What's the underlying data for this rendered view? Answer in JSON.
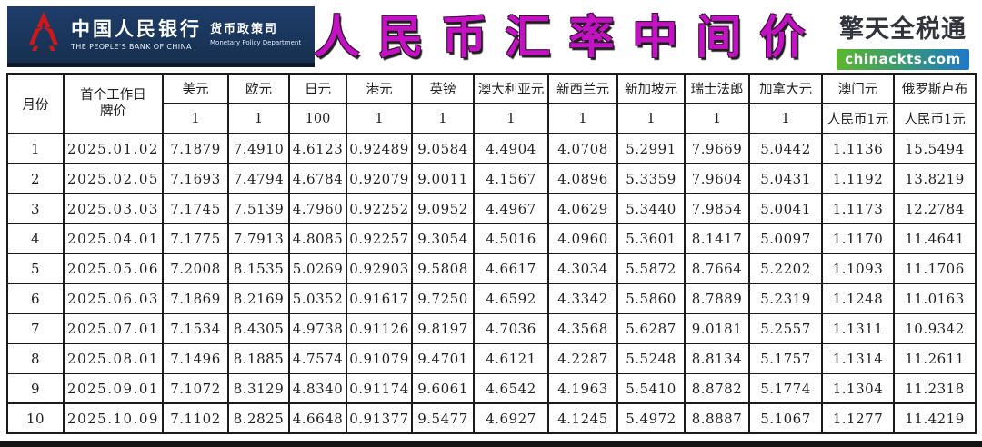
{
  "banner": {
    "bank_name_cn": "中国人民银行",
    "bank_name_en": "THE PEOPLE'S BANK OF CHINA",
    "dept_cn": "货币政策司",
    "dept_en": "Monetary Policy Department",
    "bg_color": "#16304f",
    "logo_color": "#d01818"
  },
  "title": {
    "text": "人民币汇率中间价",
    "color": "#c311c3"
  },
  "brand": {
    "name": "擎天全税通",
    "site": "chinackts.com",
    "bar_color_left": "#5eb531",
    "bar_color_right": "#1f78c8"
  },
  "table": {
    "month_label": "月份",
    "first_day_label_line1": "首个工作日",
    "first_day_label_line2": "牌价",
    "currencies": [
      {
        "id": "usd",
        "label": "美元",
        "unit": "1"
      },
      {
        "id": "eur",
        "label": "欧元",
        "unit": "1"
      },
      {
        "id": "jpy",
        "label": "日元",
        "unit": "100"
      },
      {
        "id": "hkd",
        "label": "港元",
        "unit": "1"
      },
      {
        "id": "gbp",
        "label": "英镑",
        "unit": "1"
      },
      {
        "id": "aud",
        "label": "澳大利亚元",
        "unit": "1"
      },
      {
        "id": "nzd",
        "label": "新西兰元",
        "unit": "1"
      },
      {
        "id": "sgd",
        "label": "新加坡元",
        "unit": "1"
      },
      {
        "id": "chf",
        "label": "瑞士法郎",
        "unit": "1"
      },
      {
        "id": "cad",
        "label": "加拿大元",
        "unit": "1"
      },
      {
        "id": "mop",
        "label": "澳门元",
        "unit": "人民币1元"
      },
      {
        "id": "rub",
        "label": "俄罗斯卢布",
        "unit": "人民币1元"
      }
    ],
    "rows": [
      {
        "month": "1",
        "date": "2025.01.02",
        "values": [
          "7.1879",
          "7.4910",
          "4.6123",
          "0.92489",
          "9.0584",
          "4.4904",
          "4.0708",
          "5.2991",
          "7.9669",
          "5.0442",
          "1.1136",
          "15.5494"
        ]
      },
      {
        "month": "2",
        "date": "2025.02.05",
        "values": [
          "7.1693",
          "7.4794",
          "4.6784",
          "0.92079",
          "9.0011",
          "4.1567",
          "4.0896",
          "5.3359",
          "7.9604",
          "5.0431",
          "1.1192",
          "13.8219"
        ]
      },
      {
        "month": "3",
        "date": "2025.03.03",
        "values": [
          "7.1745",
          "7.5139",
          "4.7960",
          "0.92252",
          "9.0952",
          "4.4967",
          "4.0629",
          "5.3440",
          "7.9854",
          "5.0041",
          "1.1173",
          "12.2784"
        ]
      },
      {
        "month": "4",
        "date": "2025.04.01",
        "values": [
          "7.1775",
          "7.7913",
          "4.8085",
          "0.92257",
          "9.3054",
          "4.5016",
          "4.0960",
          "5.3601",
          "8.1417",
          "5.0097",
          "1.1170",
          "11.4641"
        ]
      },
      {
        "month": "5",
        "date": "2025.05.06",
        "values": [
          "7.2008",
          "8.1535",
          "5.0269",
          "0.92903",
          "9.5808",
          "4.6617",
          "4.3034",
          "5.5872",
          "8.7664",
          "5.2202",
          "1.1093",
          "11.1706"
        ]
      },
      {
        "month": "6",
        "date": "2025.06.03",
        "values": [
          "7.1869",
          "8.2169",
          "5.0352",
          "0.91617",
          "9.7250",
          "4.6592",
          "4.3342",
          "5.5860",
          "8.7889",
          "5.2319",
          "1.1248",
          "11.0163"
        ]
      },
      {
        "month": "7",
        "date": "2025.07.01",
        "values": [
          "7.1534",
          "8.4305",
          "4.9738",
          "0.91126",
          "9.8197",
          "4.7036",
          "4.3568",
          "5.6287",
          "9.0181",
          "5.2557",
          "1.1311",
          "10.9342"
        ]
      },
      {
        "month": "8",
        "date": "2025.08.01",
        "values": [
          "7.1496",
          "8.1885",
          "4.7574",
          "0.91079",
          "9.4701",
          "4.6121",
          "4.2287",
          "5.5248",
          "8.8134",
          "5.1757",
          "1.1314",
          "11.2611"
        ]
      },
      {
        "month": "9",
        "date": "2025.09.01",
        "values": [
          "7.1072",
          "8.3129",
          "4.8340",
          "0.91174",
          "9.6061",
          "4.6542",
          "4.1963",
          "5.5410",
          "8.8782",
          "5.1774",
          "1.1304",
          "11.2318"
        ]
      },
      {
        "month": "10",
        "date": "2025.10.09",
        "values": [
          "7.1102",
          "8.2825",
          "4.6648",
          "0.91377",
          "9.5477",
          "4.6927",
          "4.1245",
          "5.4972",
          "8.8887",
          "5.1067",
          "1.1277",
          "11.4219"
        ]
      }
    ]
  }
}
